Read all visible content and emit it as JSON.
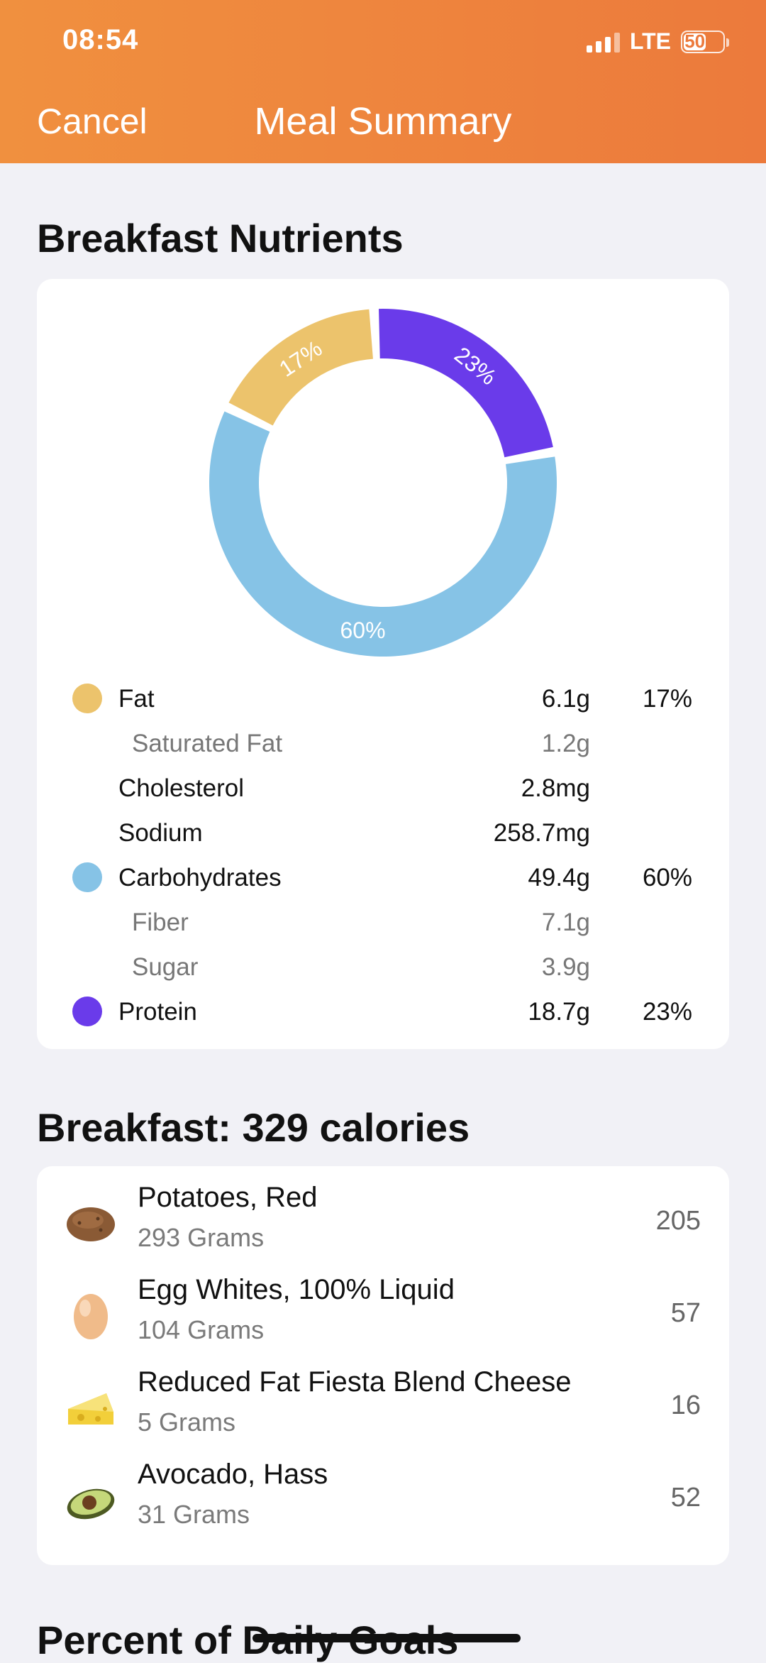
{
  "status": {
    "time": "08:54",
    "network": "LTE",
    "battery": "50"
  },
  "nav": {
    "cancel_label": "Cancel",
    "title": "Meal Summary"
  },
  "nutrients": {
    "section_title": "Breakfast Nutrients",
    "chart_data": {
      "type": "pie",
      "donut": true,
      "categories": [
        "Fat",
        "Carbohydrates",
        "Protein"
      ],
      "values": [
        17,
        60,
        23
      ],
      "labels": [
        "17%",
        "60%",
        "23%"
      ],
      "colors": [
        "#ecc36c",
        "#86c3e6",
        "#6a3bea"
      ]
    },
    "rows": [
      {
        "label": "Fat",
        "amount": "6.1g",
        "pct": "17%",
        "dot": "#ecc36c",
        "sub": false,
        "dotted": true
      },
      {
        "label": "Saturated Fat",
        "amount": "1.2g",
        "pct": "",
        "sub": true,
        "dotted": false
      },
      {
        "label": "Cholesterol",
        "amount": "2.8mg",
        "pct": "",
        "sub": false,
        "dotted": false
      },
      {
        "label": "Sodium",
        "amount": "258.7mg",
        "pct": "",
        "sub": false,
        "dotted": false
      },
      {
        "label": "Carbohydrates",
        "amount": "49.4g",
        "pct": "60%",
        "dot": "#86c3e6",
        "sub": false,
        "dotted": true
      },
      {
        "label": "Fiber",
        "amount": "7.1g",
        "pct": "",
        "sub": true,
        "dotted": false
      },
      {
        "label": "Sugar",
        "amount": "3.9g",
        "pct": "",
        "sub": true,
        "dotted": false
      },
      {
        "label": "Protein",
        "amount": "18.7g",
        "pct": "23%",
        "dot": "#6a3bea",
        "sub": false,
        "dotted": true
      }
    ]
  },
  "meal": {
    "section_title": "Breakfast: 329 calories",
    "foods": [
      {
        "name": "Potatoes, Red",
        "qty": "293 Grams",
        "calories": "205",
        "icon": "potato-icon"
      },
      {
        "name": "Egg Whites, 100% Liquid",
        "qty": "104 Grams",
        "calories": "57",
        "icon": "egg-icon"
      },
      {
        "name": "Reduced Fat Fiesta Blend Cheese",
        "qty": "5 Grams",
        "calories": "16",
        "icon": "cheese-icon"
      },
      {
        "name": "Avocado, Hass",
        "qty": "31 Grams",
        "calories": "52",
        "icon": "avocado-icon"
      }
    ]
  },
  "goals": {
    "section_title": "Percent of Daily Goals"
  }
}
